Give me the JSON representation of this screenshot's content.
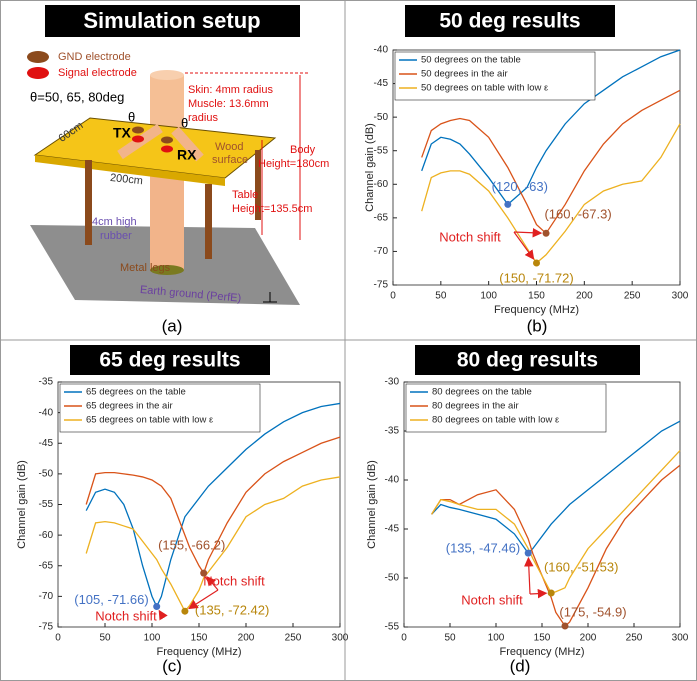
{
  "diagram": {
    "title": "Simulation setup",
    "gnd": "GND electrode",
    "signal": "Signal electrode",
    "theta_values": "θ=50, 65, 80deg",
    "skin": "Skin: 4mm radius",
    "muscle": "Muscle: 13.6mm",
    "muscle_2": "radius",
    "tx": "TX",
    "rx": "RX",
    "theta_left": "θ",
    "theta_right": "θ",
    "depth": "60cm",
    "width": "200cm",
    "wood": "Wood",
    "wood_2": "surface",
    "body": "Body",
    "body_2": "Height=180cm",
    "table": "Table",
    "table_2": "Height=135.5cm",
    "rubber": "4cm high",
    "rubber_2": "rubber",
    "legs": "Metal legs",
    "ground": "Earth ground (PerfE)",
    "label": "(a)"
  },
  "chart_data": [
    {
      "type": "line",
      "title": "50 deg results",
      "label": "(b)",
      "xlabel": "Frequency (MHz)",
      "ylabel": "Channel gain (dB)",
      "xlim": [
        0,
        300
      ],
      "xticks": [
        0,
        50,
        100,
        150,
        200,
        250,
        300
      ],
      "ylim": [
        -75,
        -40
      ],
      "yticks": [
        -75,
        -70,
        -65,
        -60,
        -55,
        -50,
        -45,
        -40
      ],
      "x": [
        30,
        40,
        50,
        60,
        70,
        80,
        100,
        120,
        140,
        150,
        160,
        180,
        200,
        220,
        240,
        260,
        280,
        300
      ],
      "series": [
        {
          "name": "50 degrees on the table",
          "color": "#0072bd",
          "values": [
            -58,
            -54,
            -53,
            -53.3,
            -54,
            -55.5,
            -59,
            -63,
            -60.5,
            -57.5,
            -55,
            -51,
            -48,
            -46,
            -44,
            -42.5,
            -41,
            -40
          ]
        },
        {
          "name": "50 degrees in the air",
          "color": "#d95319",
          "values": [
            -56,
            -52,
            -51,
            -50.5,
            -50.2,
            -50.5,
            -53,
            -57.5,
            -63,
            -66,
            -67.3,
            -63,
            -58,
            -54,
            -51,
            -49,
            -47.5,
            -46
          ]
        },
        {
          "name": "50 degrees on table with low ε",
          "color": "#edb120",
          "values": [
            -64,
            -59,
            -58.3,
            -58,
            -58,
            -58.5,
            -61,
            -65,
            -69.5,
            -71.72,
            -70.5,
            -67,
            -63,
            -61,
            -60,
            -59.5,
            -56,
            -51
          ]
        }
      ],
      "markers": [
        {
          "x": 120,
          "y": -63,
          "label": "(120, -63)",
          "color": "#4472c4"
        },
        {
          "x": 160,
          "y": -67.3,
          "label": "(160, -67.3)",
          "color": "#a0522d"
        },
        {
          "x": 150,
          "y": -71.72,
          "label": "(150, -71.72)",
          "color": "#b8860b"
        }
      ],
      "annotations": [
        "Notch shift"
      ]
    },
    {
      "type": "line",
      "title": "65 deg results",
      "label": "(c)",
      "xlabel": "Frequency (MHz)",
      "ylabel": "Channel gain (dB)",
      "xlim": [
        0,
        300
      ],
      "xticks": [
        0,
        50,
        100,
        150,
        200,
        250,
        300
      ],
      "ylim": [
        -75,
        -35
      ],
      "yticks": [
        -75,
        -70,
        -65,
        -60,
        -55,
        -50,
        -45,
        -40,
        -35
      ],
      "x": [
        30,
        40,
        50,
        60,
        70,
        80,
        90,
        100,
        105,
        110,
        120,
        135,
        140,
        150,
        155,
        160,
        180,
        200,
        220,
        240,
        260,
        280,
        300
      ],
      "series": [
        {
          "name": "65 degrees on the table",
          "color": "#0072bd",
          "values": [
            -56,
            -53,
            -52.5,
            -53,
            -55,
            -59,
            -65,
            -70,
            -71.66,
            -70,
            -64,
            -57,
            -56,
            -54,
            -53,
            -52,
            -49,
            -46,
            -43.5,
            -41.5,
            -40,
            -39,
            -38.5
          ]
        },
        {
          "name": "65 degrees in the air",
          "color": "#d95319",
          "values": [
            -55,
            -50,
            -49.8,
            -49.8,
            -50,
            -50.2,
            -50.5,
            -51,
            -51.5,
            -52,
            -54,
            -60,
            -62,
            -65,
            -66.2,
            -64,
            -58,
            -53,
            -50,
            -48,
            -46.5,
            -45,
            -44
          ]
        },
        {
          "name": "65 degrees on table with low ε",
          "color": "#edb120",
          "values": [
            -63,
            -58,
            -57.8,
            -58,
            -58.5,
            -59,
            -61,
            -63,
            -64,
            -65.5,
            -68,
            -72.42,
            -71.5,
            -69,
            -67,
            -66,
            -62,
            -57,
            -55,
            -54,
            -52,
            -51,
            -50.5
          ]
        }
      ],
      "markers": [
        {
          "x": 155,
          "y": -66.2,
          "label": "(155, -66.2)",
          "color": "#a0522d"
        },
        {
          "x": 105,
          "y": -71.66,
          "label": "(105, -71.66)",
          "color": "#4472c4"
        },
        {
          "x": 135,
          "y": -72.42,
          "label": "(135, -72.42)",
          "color": "#b8860b"
        }
      ],
      "annotations": [
        "Notch shift",
        "Notch shift"
      ]
    },
    {
      "type": "line",
      "title": "80 deg results",
      "label": "(d)",
      "xlabel": "Frequency (MHz)",
      "ylabel": "Channel gain (dB)",
      "xlim": [
        0,
        300
      ],
      "xticks": [
        0,
        50,
        100,
        150,
        200,
        250,
        300
      ],
      "ylim": [
        -55,
        -30
      ],
      "yticks": [
        -55,
        -50,
        -45,
        -40,
        -35,
        -30
      ],
      "x": [
        30,
        40,
        50,
        60,
        80,
        100,
        120,
        135,
        140,
        160,
        165,
        175,
        180,
        200,
        220,
        240,
        260,
        280,
        300
      ],
      "series": [
        {
          "name": "80 degrees on the table",
          "color": "#0072bd",
          "values": [
            -43.5,
            -42.5,
            -42.8,
            -43,
            -43.5,
            -44,
            -45.5,
            -47.46,
            -47,
            -44.5,
            -44,
            -43,
            -42.5,
            -41,
            -39.5,
            -38,
            -36.5,
            -35,
            -34
          ]
        },
        {
          "name": "80 degrees in the air",
          "color": "#d95319",
          "values": [
            -43.5,
            -42,
            -42,
            -42.5,
            -41.5,
            -41,
            -43,
            -46,
            -47.5,
            -52,
            -53.5,
            -54.9,
            -54.5,
            -51,
            -47,
            -44,
            -42,
            -40,
            -38.5
          ]
        },
        {
          "name": "80 degrees on table with low ε",
          "color": "#edb120",
          "values": [
            -43.5,
            -42,
            -42.2,
            -42.5,
            -43,
            -43,
            -44.5,
            -47,
            -48,
            -51.53,
            -51.4,
            -51,
            -50,
            -47,
            -45,
            -43,
            -41,
            -39,
            -37
          ]
        }
      ],
      "markers": [
        {
          "x": 135,
          "y": -47.46,
          "label": "(135, -47.46)",
          "color": "#4472c4"
        },
        {
          "x": 160,
          "y": -51.53,
          "label": "(160, -51.53)",
          "color": "#b8860b"
        },
        {
          "x": 175,
          "y": -54.9,
          "label": "(175, -54.9)",
          "color": "#a0522d"
        }
      ],
      "annotations": [
        "Notch shift"
      ]
    }
  ]
}
